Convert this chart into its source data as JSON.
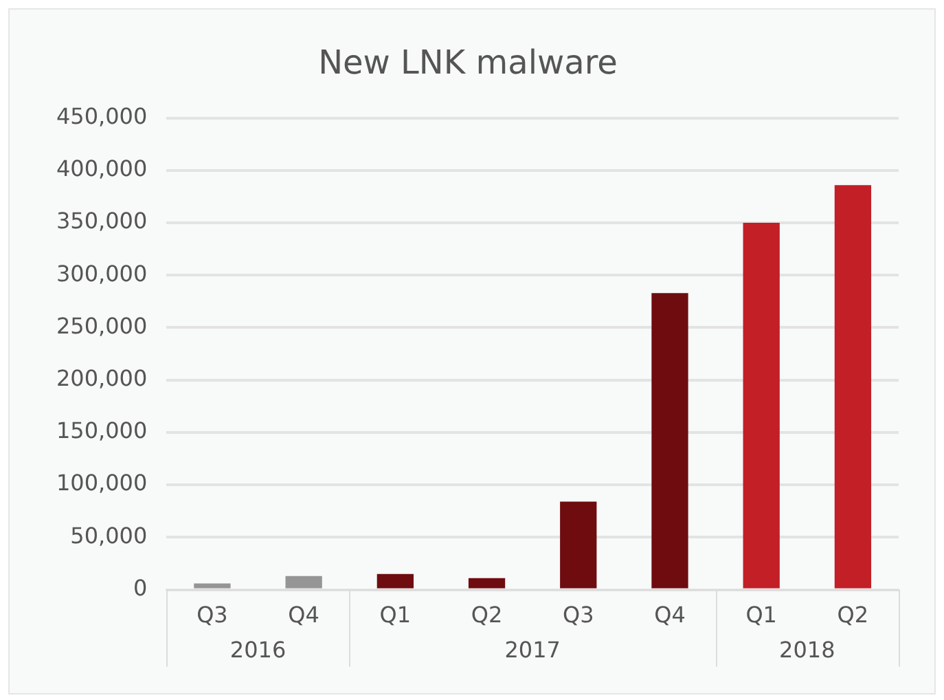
{
  "chart_data": {
    "type": "bar",
    "title": "New LNK malware",
    "categories": [
      "Q3",
      "Q4",
      "Q1",
      "Q2",
      "Q3",
      "Q4",
      "Q1",
      "Q2"
    ],
    "values": [
      6000,
      13000,
      15000,
      11000,
      84000,
      283000,
      350000,
      386000
    ],
    "colors": [
      "#959595",
      "#959595",
      "#6e0c10",
      "#6e0c10",
      "#6e0c10",
      "#6e0c10",
      "#c21f26",
      "#c21f26"
    ],
    "annotations": [
      "2016",
      "2017",
      "2018"
    ],
    "ylim": [
      0,
      450000
    ],
    "yticks": [
      0,
      {
        "value": 50000,
        "label": "50,000"
      },
      {
        "value": 100000,
        "label": "100,000"
      },
      {
        "value": 150000,
        "label": "150,000"
      },
      {
        "value": 200000,
        "label": "200,000"
      },
      {
        "value": 250000,
        "label": "250,000"
      },
      {
        "value": 300000,
        "label": "300,000"
      },
      {
        "value": 350000,
        "label": "350,000"
      },
      {
        "value": 400000,
        "label": "400,000"
      },
      {
        "value": 450000,
        "label": "450,000"
      }
    ],
    "grid": "y",
    "legend": false
  }
}
